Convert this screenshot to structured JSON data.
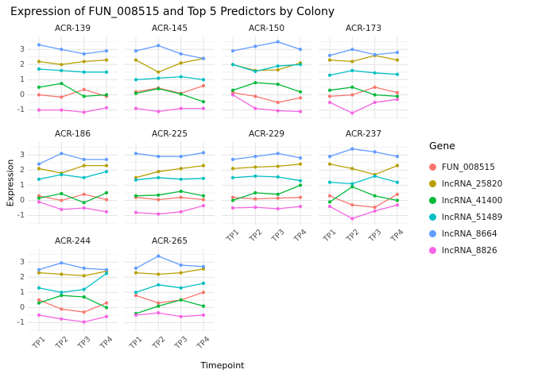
{
  "chart_data": {
    "type": "line",
    "title": "Expression of FUN_008515 and Top 5 Predictors by Colony",
    "xlabel": "Timepoint",
    "ylabel": "Expression",
    "legend_title": "Gene",
    "x": [
      "TP1",
      "TP2",
      "TP3",
      "TP4"
    ],
    "yticks": [
      -1,
      0,
      1,
      2,
      3
    ],
    "ylim": [
      -1.6,
      3.85
    ],
    "grid": "on",
    "legend_position": "right",
    "series_meta": [
      {
        "name": "FUN_008515",
        "color": "#F8766D"
      },
      {
        "name": "lncRNA_25820",
        "color": "#B79F00"
      },
      {
        "name": "lncRNA_41400",
        "color": "#00BA38"
      },
      {
        "name": "lncRNA_51489",
        "color": "#00BFC4"
      },
      {
        "name": "lncRNA_8664",
        "color": "#619CFF"
      },
      {
        "name": "lncRNA_8826",
        "color": "#F564E3"
      }
    ],
    "facets": [
      {
        "name": "ACR-139",
        "series": {
          "FUN_008515": [
            0.0,
            -0.15,
            0.35,
            -0.1
          ],
          "lncRNA_25820": [
            2.2,
            2.0,
            2.2,
            2.3
          ],
          "lncRNA_41400": [
            0.5,
            0.75,
            -0.1,
            0.0
          ],
          "lncRNA_51489": [
            1.7,
            1.6,
            1.5,
            1.5
          ],
          "lncRNA_8664": [
            3.3,
            3.0,
            2.7,
            2.9
          ],
          "lncRNA_8826": [
            -1.0,
            -1.0,
            -1.15,
            -0.85
          ]
        }
      },
      {
        "name": "ACR-145",
        "series": {
          "FUN_008515": [
            0.2,
            0.45,
            0.1,
            0.6
          ],
          "lncRNA_25820": [
            2.3,
            1.5,
            2.1,
            2.4
          ],
          "lncRNA_41400": [
            0.1,
            0.4,
            0.05,
            -0.45
          ],
          "lncRNA_51489": [
            1.0,
            1.1,
            1.2,
            1.0
          ],
          "lncRNA_8664": [
            2.9,
            3.25,
            2.7,
            2.4
          ],
          "lncRNA_8826": [
            -0.9,
            -1.1,
            -0.9,
            -0.9
          ]
        }
      },
      {
        "name": "ACR-150",
        "series": {
          "FUN_008515": [
            0.15,
            -0.1,
            -0.5,
            -0.2
          ],
          "lncRNA_25820": [
            2.0,
            1.6,
            1.65,
            2.1
          ],
          "lncRNA_41400": [
            0.3,
            0.8,
            0.7,
            0.2
          ],
          "lncRNA_51489": [
            2.0,
            1.55,
            1.9,
            2.0
          ],
          "lncRNA_8664": [
            2.9,
            3.2,
            3.5,
            3.0
          ],
          "lncRNA_8826": [
            0.0,
            -0.9,
            -1.05,
            -1.1
          ]
        }
      },
      {
        "name": "ACR-173",
        "series": {
          "FUN_008515": [
            -0.1,
            0.0,
            0.5,
            0.15
          ],
          "lncRNA_25820": [
            2.3,
            2.2,
            2.6,
            2.3
          ],
          "lncRNA_41400": [
            0.3,
            0.5,
            0.0,
            -0.1
          ],
          "lncRNA_51489": [
            1.3,
            1.6,
            1.45,
            1.35
          ],
          "lncRNA_8664": [
            2.6,
            3.0,
            2.65,
            2.8
          ],
          "lncRNA_8826": [
            -0.5,
            -1.2,
            -0.5,
            -0.3
          ]
        }
      },
      {
        "name": "ACR-186",
        "series": {
          "FUN_008515": [
            0.3,
            0.0,
            0.4,
            0.05
          ],
          "lncRNA_25820": [
            2.1,
            1.8,
            2.3,
            2.3
          ],
          "lncRNA_41400": [
            0.15,
            0.45,
            -0.15,
            0.5
          ],
          "lncRNA_51489": [
            1.4,
            1.7,
            1.5,
            1.9
          ],
          "lncRNA_8664": [
            2.4,
            3.1,
            2.7,
            2.7
          ],
          "lncRNA_8826": [
            -0.1,
            -0.6,
            -0.5,
            -0.75
          ]
        }
      },
      {
        "name": "ACR-225",
        "series": {
          "FUN_008515": [
            0.2,
            0.05,
            0.2,
            0.05
          ],
          "lncRNA_25820": [
            1.5,
            1.9,
            2.1,
            2.3
          ],
          "lncRNA_41400": [
            0.3,
            0.35,
            0.6,
            0.3
          ],
          "lncRNA_51489": [
            1.35,
            1.5,
            1.4,
            1.45
          ],
          "lncRNA_8664": [
            3.1,
            2.9,
            2.9,
            3.15
          ],
          "lncRNA_8826": [
            -0.8,
            -0.9,
            -0.75,
            -0.35
          ]
        }
      },
      {
        "name": "ACR-229",
        "series": {
          "FUN_008515": [
            0.2,
            0.1,
            0.15,
            0.2
          ],
          "lncRNA_25820": [
            2.1,
            2.2,
            2.25,
            2.4
          ],
          "lncRNA_41400": [
            0.0,
            0.5,
            0.4,
            1.0
          ],
          "lncRNA_51489": [
            1.5,
            1.6,
            1.55,
            1.3
          ],
          "lncRNA_8664": [
            2.7,
            2.9,
            3.1,
            2.8
          ],
          "lncRNA_8826": [
            -0.5,
            -0.45,
            -0.55,
            -0.4
          ]
        }
      },
      {
        "name": "ACR-237",
        "series": {
          "FUN_008515": [
            0.3,
            -0.3,
            -0.45,
            0.4
          ],
          "lncRNA_25820": [
            2.4,
            2.1,
            1.7,
            2.3
          ],
          "lncRNA_41400": [
            -0.1,
            0.9,
            0.3,
            0.0
          ],
          "lncRNA_51489": [
            1.2,
            1.1,
            1.6,
            1.2
          ],
          "lncRNA_8664": [
            2.9,
            3.4,
            3.2,
            2.9
          ],
          "lncRNA_8826": [
            -0.4,
            -1.2,
            -0.7,
            -0.3
          ]
        }
      },
      {
        "name": "ACR-244",
        "series": {
          "FUN_008515": [
            0.5,
            -0.1,
            -0.3,
            0.3
          ],
          "lncRNA_25820": [
            2.3,
            2.2,
            2.1,
            2.4
          ],
          "lncRNA_41400": [
            0.3,
            0.8,
            0.7,
            0.0
          ],
          "lncRNA_51489": [
            1.3,
            1.0,
            1.2,
            2.25
          ],
          "lncRNA_8664": [
            2.5,
            2.95,
            2.6,
            2.5
          ],
          "lncRNA_8826": [
            -0.5,
            -0.75,
            -0.95,
            -0.6
          ]
        }
      },
      {
        "name": "ACR-265",
        "series": {
          "FUN_008515": [
            0.8,
            0.3,
            0.5,
            1.0
          ],
          "lncRNA_25820": [
            2.3,
            2.2,
            2.3,
            2.55
          ],
          "lncRNA_41400": [
            -0.4,
            0.1,
            0.5,
            0.1
          ],
          "lncRNA_51489": [
            1.0,
            1.5,
            1.3,
            1.6
          ],
          "lncRNA_8664": [
            2.6,
            3.4,
            2.8,
            2.7
          ],
          "lncRNA_8826": [
            -0.5,
            -0.35,
            -0.6,
            -0.5
          ]
        }
      }
    ]
  }
}
